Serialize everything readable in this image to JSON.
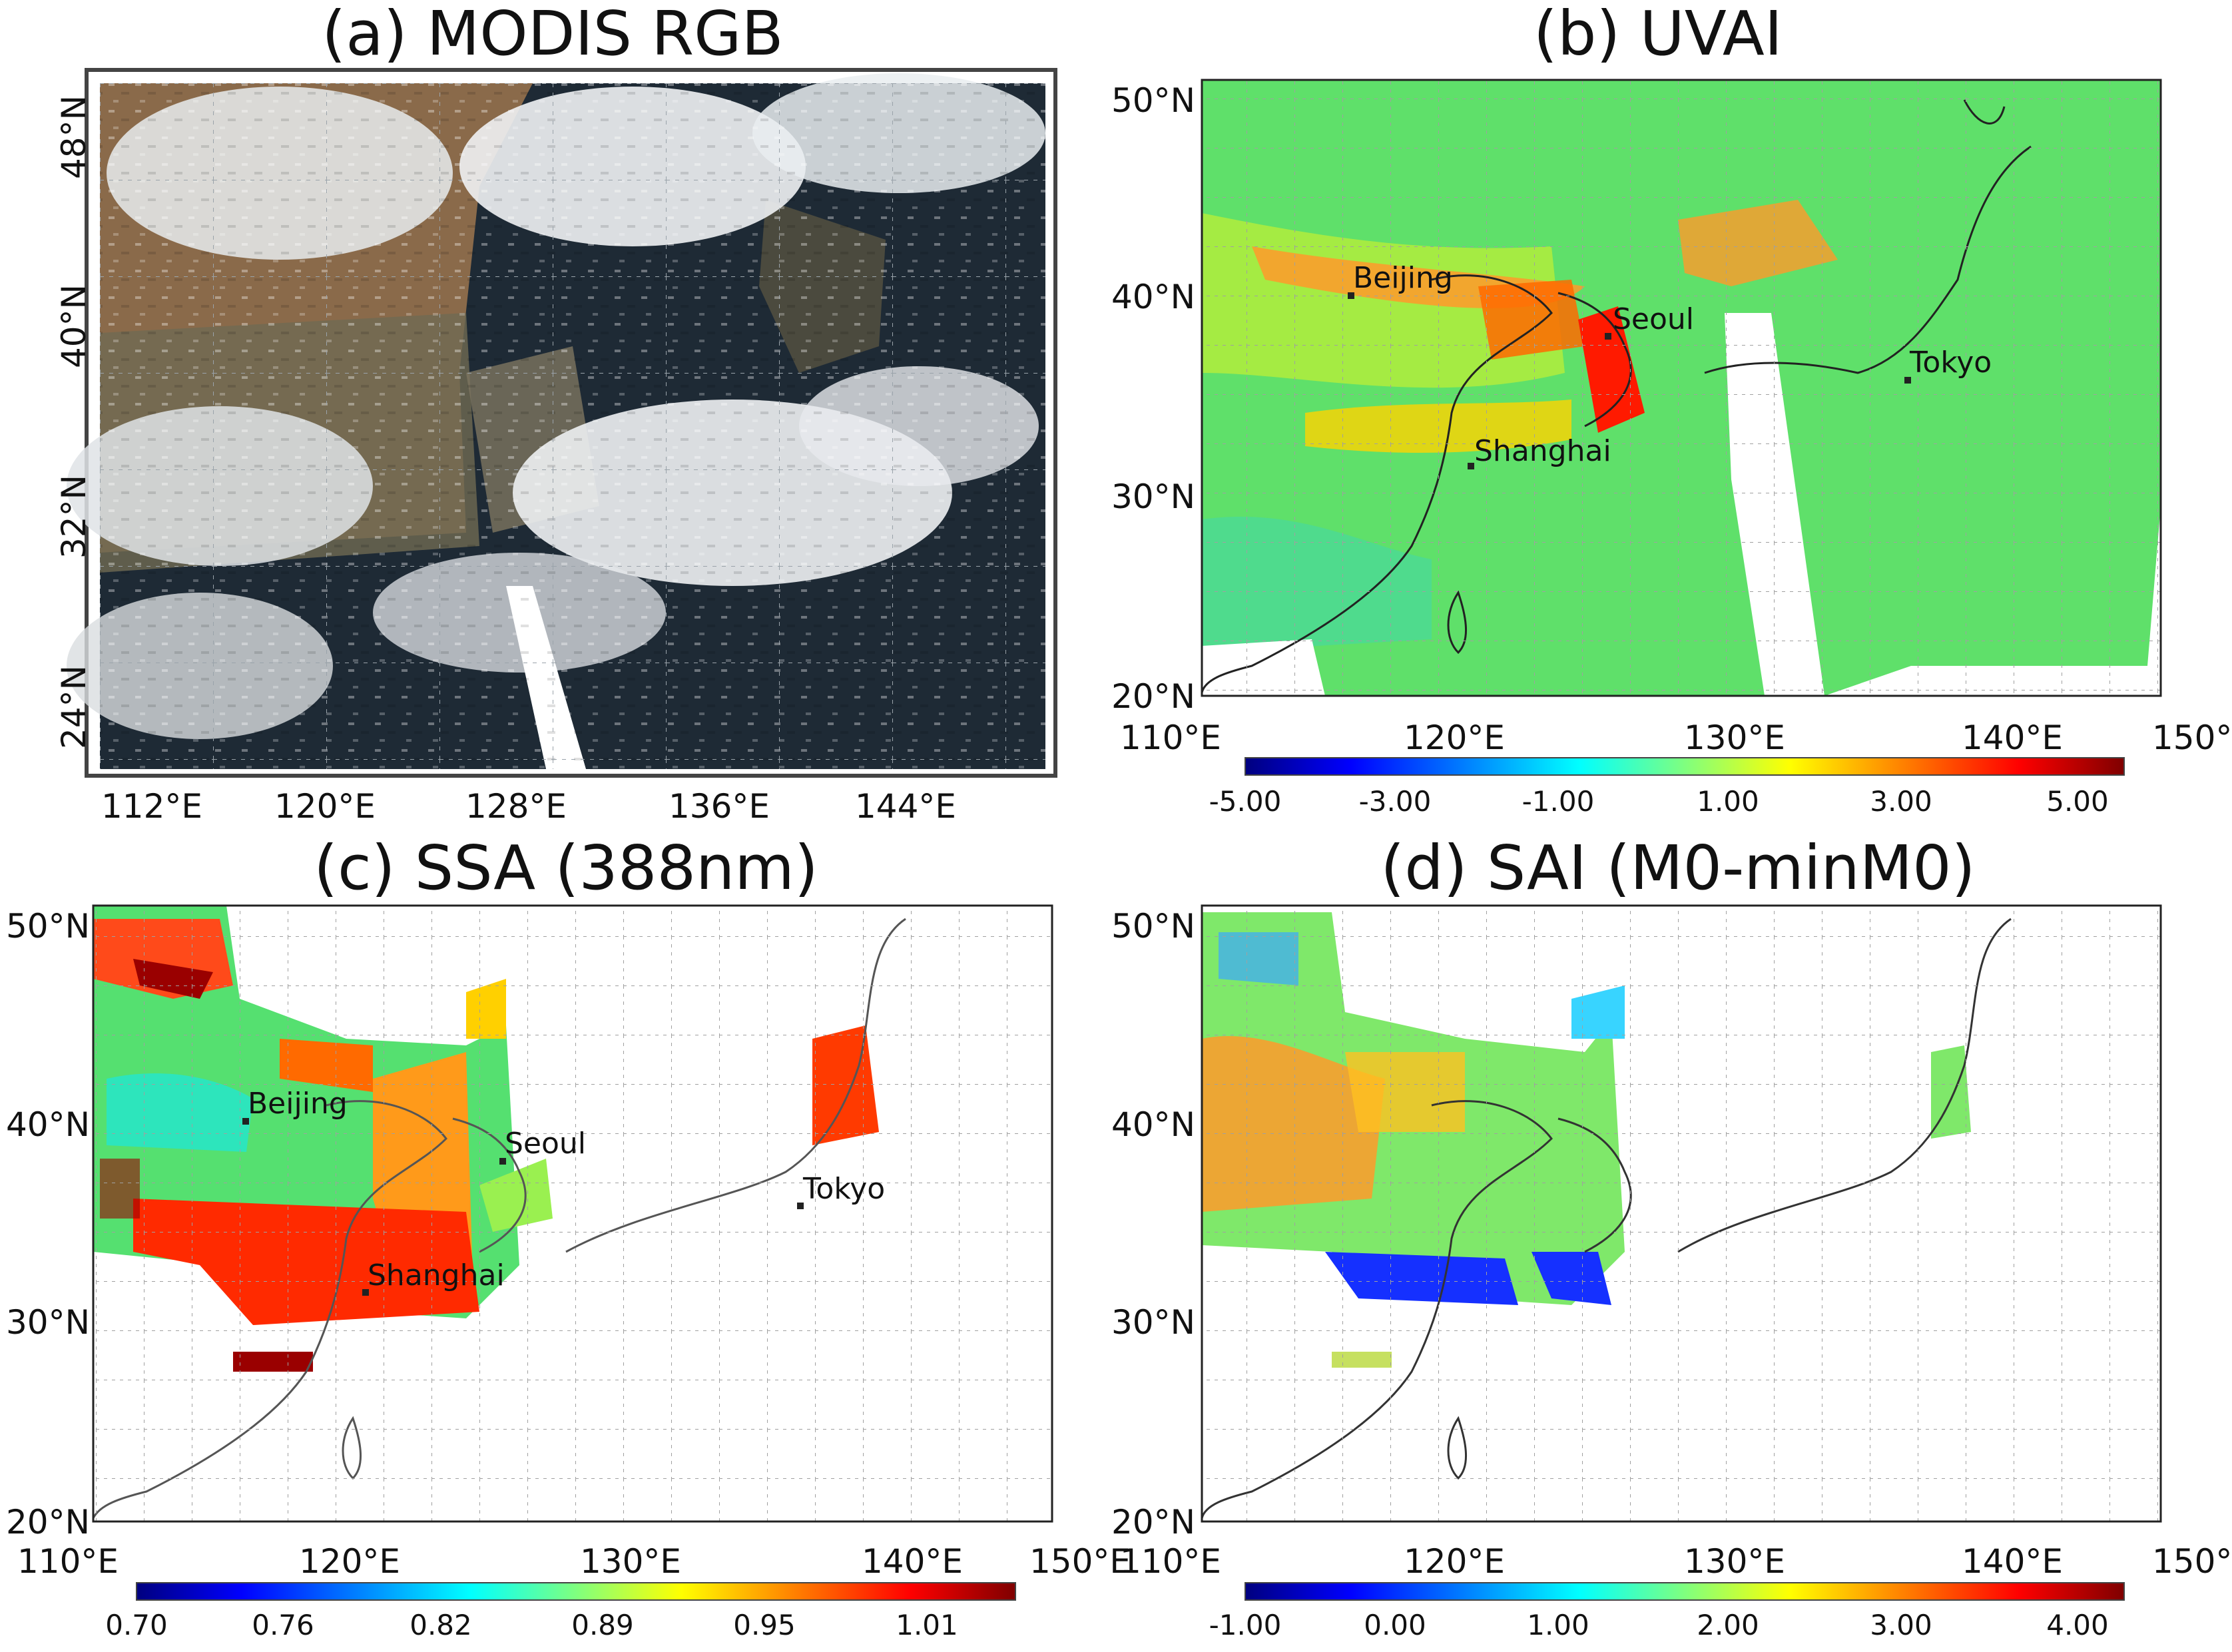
{
  "panels": {
    "a": {
      "title": "(a) MODIS RGB",
      "lat_ticks": [
        "48°N",
        "40°N",
        "32°N",
        "24°N"
      ],
      "lon_ticks": [
        "112°E",
        "120°E",
        "128°E",
        "136°E",
        "144°E"
      ]
    },
    "b": {
      "title": "(b) UVAI",
      "lat_ticks": [
        "50°N",
        "40°N",
        "30°N",
        "20°N"
      ],
      "lon_ticks": [
        "110°E",
        "120°E",
        "130°E",
        "140°E",
        "150°E"
      ],
      "cities": [
        "Beijing",
        "Seoul",
        "Tokyo",
        "Shanghai"
      ],
      "colorbar_ticks": [
        "-5.00",
        "-3.00",
        "-1.00",
        "1.00",
        "3.00",
        "5.00"
      ]
    },
    "c": {
      "title": "(c) SSA (388nm)",
      "lat_ticks": [
        "50°N",
        "40°N",
        "30°N",
        "20°N"
      ],
      "lon_ticks": [
        "110°E",
        "120°E",
        "130°E",
        "140°E",
        "150°E"
      ],
      "cities": [
        "Beijing",
        "Seoul",
        "Tokyo",
        "Shanghai"
      ],
      "colorbar_ticks": [
        "0.70",
        "0.76",
        "0.82",
        "0.89",
        "0.95",
        "1.01"
      ]
    },
    "d": {
      "title": "(d) SAI (M0-minM0)",
      "lat_ticks": [
        "50°N",
        "40°N",
        "30°N",
        "20°N"
      ],
      "lon_ticks": [
        "110°E",
        "120°E",
        "130°E",
        "140°E",
        "150°E"
      ],
      "colorbar_ticks": [
        "-1.00",
        "0.00",
        "1.00",
        "2.00",
        "3.00",
        "4.00"
      ]
    }
  },
  "colorbar_colors": [
    "#00007f",
    "#0000ff",
    "#007fff",
    "#00ffff",
    "#7fff7f",
    "#ffff00",
    "#ff7f00",
    "#ff0000",
    "#7f0000"
  ]
}
